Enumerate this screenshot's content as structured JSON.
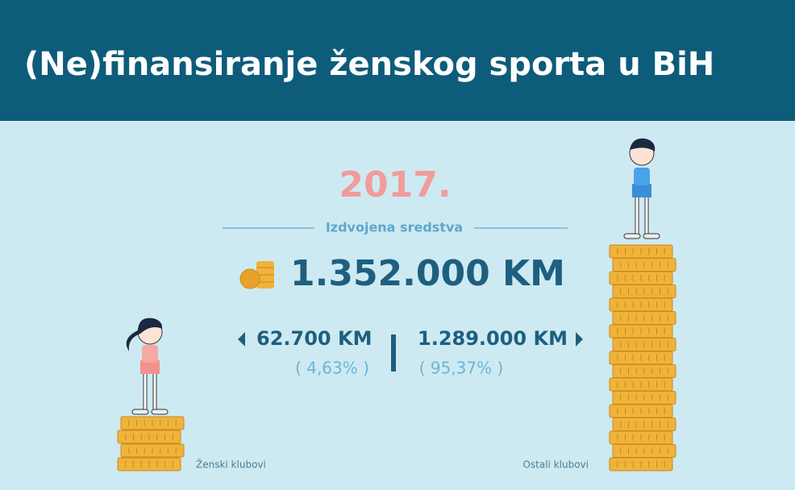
{
  "header": {
    "title": "(Ne)finansiranje ženskog sporta u BiH"
  },
  "year": "2017.",
  "subtitle": "Izdvojena sredstva",
  "total": "1.352.000 KM",
  "women": {
    "amount": "62.700 KM",
    "share": "( 4,63% )",
    "label": "Ženski klubovi"
  },
  "others": {
    "amount": "1.289.000 KM",
    "share": "( 95,37% )",
    "label": "Ostali klubovi"
  }
}
